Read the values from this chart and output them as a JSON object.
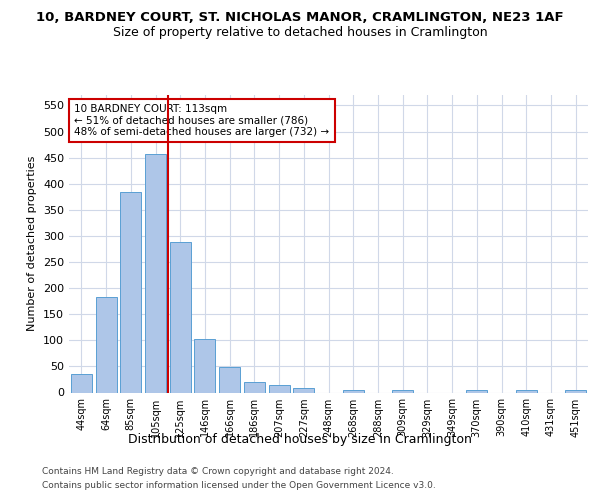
{
  "title1": "10, BARDNEY COURT, ST. NICHOLAS MANOR, CRAMLINGTON, NE23 1AF",
  "title2": "Size of property relative to detached houses in Cramlington",
  "xlabel": "Distribution of detached houses by size in Cramlington",
  "ylabel": "Number of detached properties",
  "footer1": "Contains HM Land Registry data © Crown copyright and database right 2024.",
  "footer2": "Contains public sector information licensed under the Open Government Licence v3.0.",
  "annotation_title": "10 BARDNEY COURT: 113sqm",
  "annotation_line1": "← 51% of detached houses are smaller (786)",
  "annotation_line2": "48% of semi-detached houses are larger (732) →",
  "bar_labels": [
    "44sqm",
    "64sqm",
    "85sqm",
    "105sqm",
    "125sqm",
    "146sqm",
    "166sqm",
    "186sqm",
    "207sqm",
    "227sqm",
    "248sqm",
    "268sqm",
    "288sqm",
    "309sqm",
    "329sqm",
    "349sqm",
    "370sqm",
    "390sqm",
    "410sqm",
    "431sqm",
    "451sqm"
  ],
  "bar_values": [
    35,
    183,
    385,
    457,
    288,
    103,
    48,
    20,
    15,
    9,
    0,
    5,
    0,
    5,
    0,
    0,
    5,
    0,
    5,
    0,
    5
  ],
  "bar_color": "#aec6e8",
  "bar_edge_color": "#5a9fd4",
  "vline_color": "#cc0000",
  "vline_x_index": 3.5,
  "annotation_box_color": "#cc0000",
  "ylim": [
    0,
    570
  ],
  "yticks": [
    0,
    50,
    100,
    150,
    200,
    250,
    300,
    350,
    400,
    450,
    500,
    550
  ],
  "bg_color": "#ffffff",
  "grid_color": "#d0d8e8"
}
